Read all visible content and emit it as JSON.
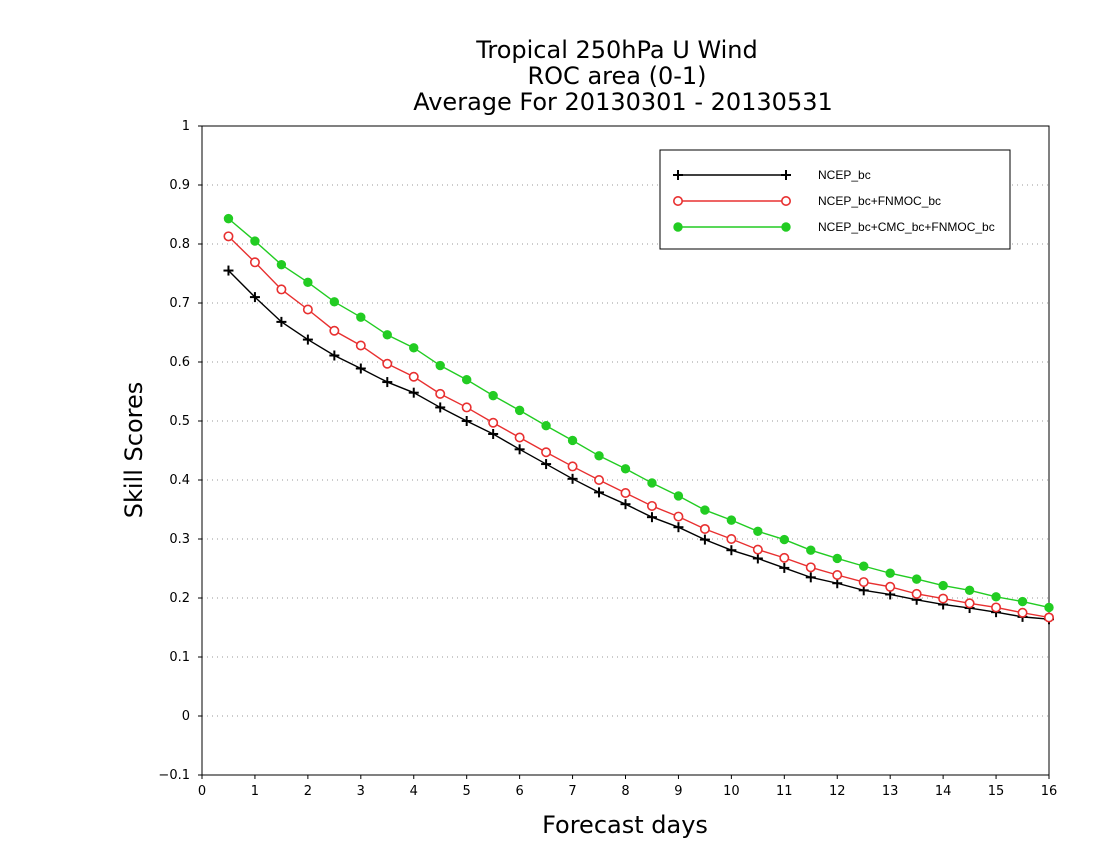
{
  "chart_data": {
    "type": "line",
    "title_lines": [
      "Tropical 250hPa U Wind",
      "ROC area (0-1)",
      "Average For 20130301 - 20130531"
    ],
    "xlabel": "Forecast days",
    "ylabel": "Skill Scores",
    "xlim": [
      0,
      16
    ],
    "ylim": [
      -0.1,
      1
    ],
    "x_ticks": [
      "0",
      "1",
      "2",
      "3",
      "4",
      "5",
      "6",
      "7",
      "8",
      "9",
      "10",
      "11",
      "12",
      "13",
      "14",
      "15",
      "16"
    ],
    "y_ticks": [
      "−0.1",
      "0",
      "0.1",
      "0.2",
      "0.3",
      "0.4",
      "0.5",
      "0.6",
      "0.7",
      "0.8",
      "0.9",
      "1"
    ],
    "grid": "dotted horizontal",
    "legend_position": "top-right",
    "x": [
      0.5,
      1,
      1.5,
      2,
      2.5,
      3,
      3.5,
      4,
      4.5,
      5,
      5.5,
      6,
      6.5,
      7,
      7.5,
      8,
      8.5,
      9,
      9.5,
      10,
      10.5,
      11,
      11.5,
      12,
      12.5,
      13,
      13.5,
      14,
      14.5,
      15,
      15.5,
      16
    ],
    "series": [
      {
        "name": "NCEP_bc",
        "color": "#000000",
        "marker": "plus",
        "values": [
          0.755,
          0.71,
          0.668,
          0.638,
          0.611,
          0.589,
          0.566,
          0.548,
          0.523,
          0.5,
          0.478,
          0.452,
          0.427,
          0.402,
          0.379,
          0.359,
          0.337,
          0.32,
          0.299,
          0.281,
          0.267,
          0.251,
          0.235,
          0.225,
          0.213,
          0.206,
          0.197,
          0.189,
          0.183,
          0.176,
          0.168,
          0.164
        ]
      },
      {
        "name": "NCEP_bc+FNMOC_bc",
        "color": "#e83030",
        "marker": "open-circle",
        "values": [
          0.813,
          0.769,
          0.723,
          0.689,
          0.653,
          0.628,
          0.597,
          0.575,
          0.546,
          0.523,
          0.497,
          0.472,
          0.447,
          0.423,
          0.4,
          0.378,
          0.356,
          0.338,
          0.317,
          0.3,
          0.282,
          0.268,
          0.252,
          0.239,
          0.227,
          0.219,
          0.207,
          0.199,
          0.191,
          0.184,
          0.175,
          0.167
        ]
      },
      {
        "name": "NCEP_bc+CMC_bc+FNMOC_bc",
        "color": "#22cc22",
        "marker": "filled-circle",
        "values": [
          0.843,
          0.805,
          0.765,
          0.735,
          0.702,
          0.676,
          0.646,
          0.624,
          0.594,
          0.57,
          0.543,
          0.518,
          0.492,
          0.467,
          0.441,
          0.419,
          0.395,
          0.373,
          0.349,
          0.332,
          0.313,
          0.299,
          0.281,
          0.267,
          0.254,
          0.242,
          0.232,
          0.221,
          0.213,
          0.202,
          0.194,
          0.184
        ]
      }
    ]
  }
}
